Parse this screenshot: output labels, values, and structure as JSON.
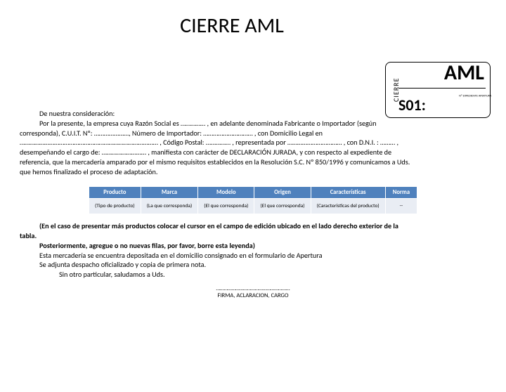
{
  "title": "CIERRE AML",
  "stamp": {
    "side": "CIERRE",
    "big": "AML",
    "code": "S01:",
    "small": "Nº EXPEDIENTE APERTURA"
  },
  "para": {
    "l1": "De nuestra consideración:",
    "l2a": "Por la presente, la empresa cuya Razón Social es …………… , en adelante denominada Fabricante o Importador (según",
    "l3": "corresponda), C.U.I.T. Nº: …………………, Número de Importador: ………………………… , con Domicilio Legal en",
    "l4": "………………………………………………………………………… , Código Postal: …………… , representada por …………………………… , con D.N.I. : ……… ,",
    "l5": "desempeñando el cargo de: ……………………… , manifiesta con carácter de DECLARACIÓN JURADA, y con respecto al expediente de",
    "l6": "referencia, que la mercadería amparado por el mismo requisitos establecidos en la Resolución S.C. Nº 850/1996 y comunicamos a Uds.",
    "l7": "que hemos finalizado el proceso de adaptación."
  },
  "table": {
    "headers": {
      "c1": "Producto",
      "c2": "Marca",
      "c3": "Modelo",
      "c4": "Origen",
      "c5": "Características",
      "c6": "Norma"
    },
    "row": {
      "c1": "(Tipo de producto)",
      "c2": "(La que corresponda)",
      "c3": "(El que corresponda)",
      "c4": "(El que corresponda)",
      "c5": "(Características del producto)",
      "c6": "--"
    },
    "header_bg": "#4f81bd",
    "header_fg": "#ffffff",
    "cell_bg": "#e9edf4"
  },
  "footer": {
    "f1a": "(En el caso de presentar más productos colocar el cursor en el campo de edición ubicado en el lado derecho exterior de la",
    "f1b": "tabla.",
    "f2": "Posteriormente, agregue o no nuevas filas, por favor, borre esta leyenda)",
    "f3": "Esta mercadería se encuentra depositada en el domicilio consignado en el formulario de Apertura",
    "f4": "Se adjunta despacho oficializado y copia de primera nota.",
    "f5": "Sin otro particular, saludamos a Uds."
  },
  "sig": {
    "line": "…………………………………………………",
    "label": "FIRMA, ACLARACION, CARGO"
  }
}
